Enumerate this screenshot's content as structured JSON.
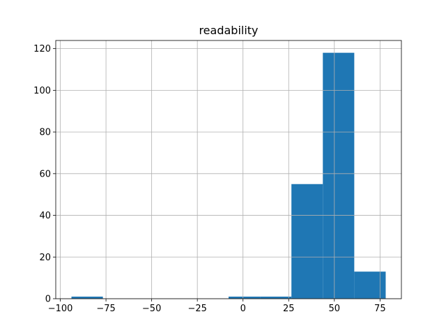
{
  "chart_data": {
    "type": "histogram",
    "title": "readability",
    "bins": [
      -93.9,
      -76.7,
      -59.5,
      -42.3,
      -25.1,
      -7.9,
      9.3,
      26.5,
      43.7,
      60.9,
      78.1
    ],
    "values": [
      1,
      0,
      0,
      0,
      0,
      1,
      1,
      55,
      118,
      13
    ],
    "color": "#1f77b4",
    "xlim": [
      -102.5,
      86.7
    ],
    "xticks": [
      {
        "value": -100,
        "label": "−100"
      },
      {
        "value": -75,
        "label": "−75"
      },
      {
        "value": -50,
        "label": "−50"
      },
      {
        "value": -25,
        "label": "−25"
      },
      0,
      25,
      50,
      75
    ],
    "ylim": [
      0,
      123.9
    ],
    "yticks": [
      0,
      20,
      40,
      60,
      80,
      100,
      120
    ],
    "grid": true
  }
}
